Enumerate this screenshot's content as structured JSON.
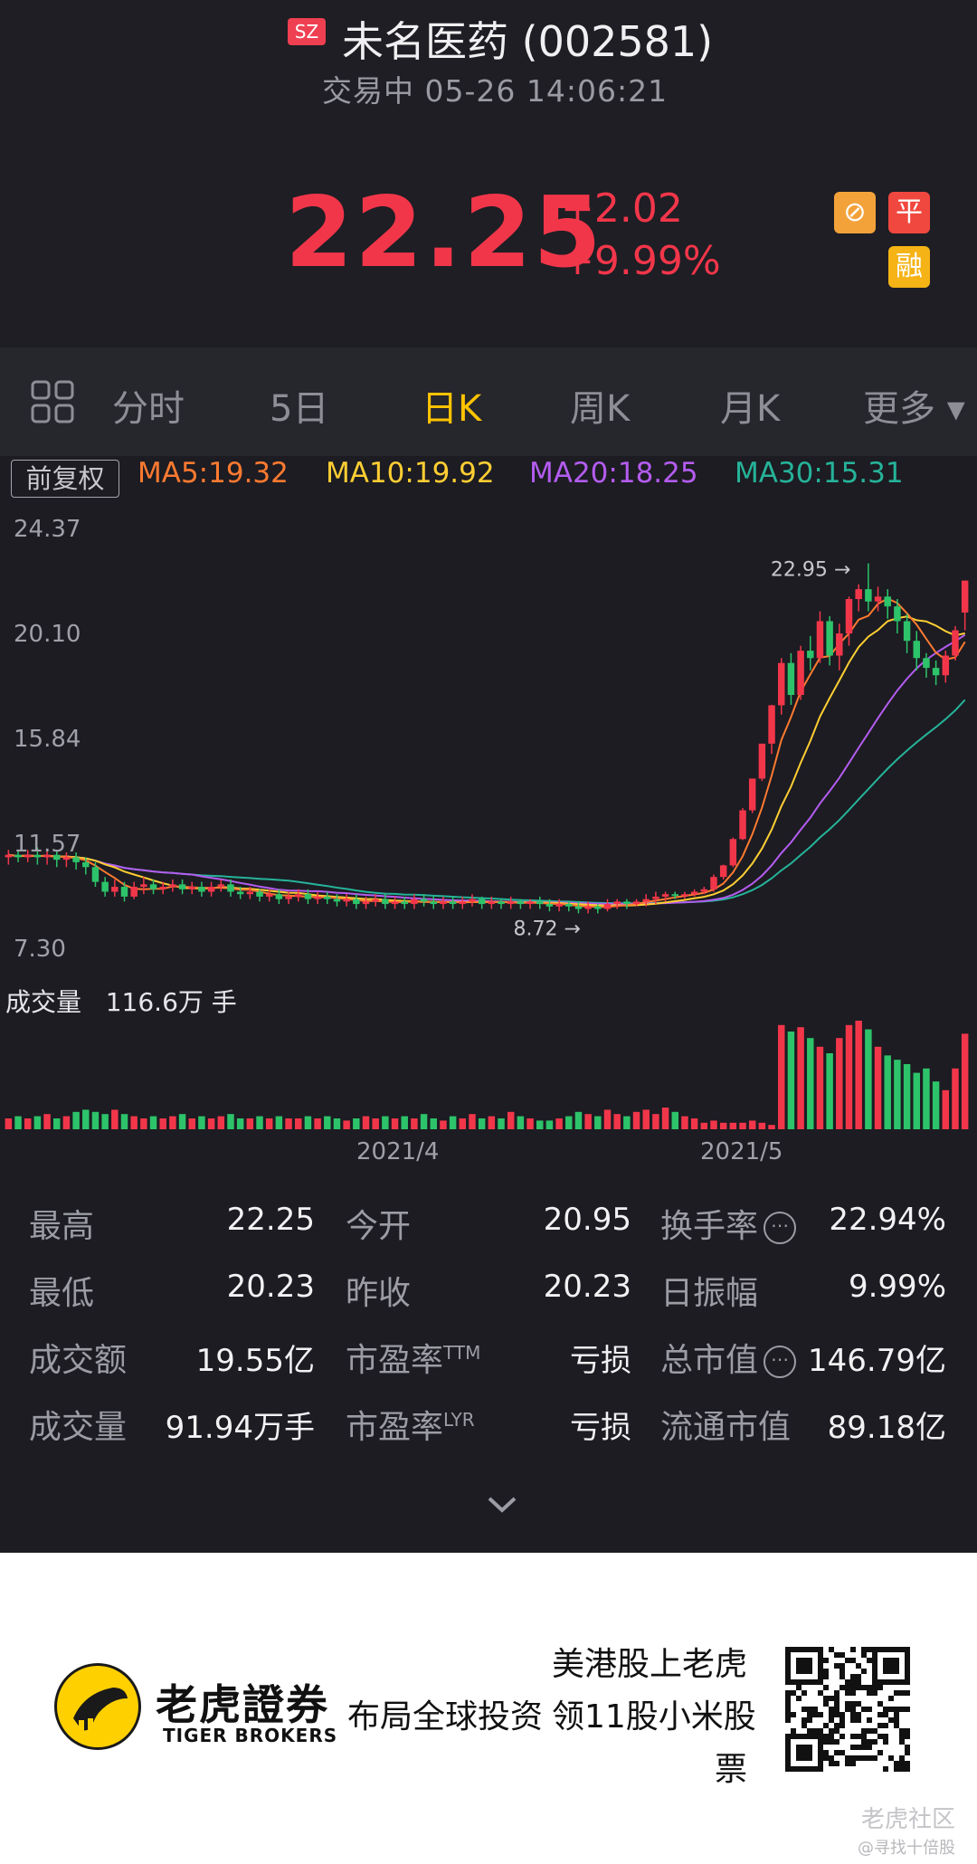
{
  "header": {
    "market_badge": "SZ",
    "title": "未名医药 (002581)",
    "status": "交易中 05-26 14:06:21",
    "price": "22.25",
    "change": "+2.02",
    "change_pct": "+9.99%",
    "badges": [
      {
        "text": "⊘",
        "color": "#f3a23a"
      },
      {
        "text": "平",
        "color": "#f0473f"
      },
      {
        "text": "融",
        "color": "#f5b316"
      }
    ]
  },
  "tabs": {
    "grid_icon": "grid-icon",
    "items": [
      "分时",
      "5日",
      "日K",
      "周K",
      "月K",
      "更多 ▾"
    ],
    "active": "日K"
  },
  "chart_header": {
    "adjust": "前复权",
    "ma5": "MA5:19.32",
    "ma10": "MA10:19.92",
    "ma20": "MA20:18.25",
    "ma30": "MA30:15.31"
  },
  "colors": {
    "up": "#f2364a",
    "down": "#2dc36a",
    "ma5": "#ff7a30",
    "ma10": "#ffce33",
    "ma20": "#b45cf0",
    "ma30": "#26b39a",
    "accent": "#ffc400"
  },
  "chart_data": {
    "type": "candlestick",
    "y_ticks": [
      "24.37",
      "20.10",
      "15.84",
      "11.57",
      "7.30"
    ],
    "ylim": [
      7.3,
      24.37
    ],
    "high_label": "22.95",
    "low_label": "8.72",
    "x_ticks": [
      "2021/4",
      "2021/5"
    ],
    "volume_label": "成交量",
    "volume_value": "116.6万 手",
    "candles": [
      [
        11.0,
        11.1,
        10.7,
        11.3
      ],
      [
        11.1,
        11.0,
        10.8,
        11.3
      ],
      [
        11.0,
        11.1,
        10.8,
        11.3
      ],
      [
        11.1,
        11.0,
        10.7,
        11.4
      ],
      [
        11.0,
        11.1,
        10.7,
        11.3
      ],
      [
        11.1,
        10.9,
        10.6,
        11.3
      ],
      [
        10.9,
        11.0,
        10.6,
        11.2
      ],
      [
        11.0,
        10.8,
        10.5,
        11.2
      ],
      [
        10.8,
        10.6,
        10.3,
        11.0
      ],
      [
        10.6,
        10.0,
        9.8,
        10.8
      ],
      [
        10.0,
        9.6,
        9.4,
        10.2
      ],
      [
        9.6,
        9.8,
        9.4,
        10.1
      ],
      [
        9.8,
        9.4,
        9.2,
        10.0
      ],
      [
        9.4,
        9.8,
        9.3,
        10.0
      ],
      [
        9.8,
        9.9,
        9.5,
        10.2
      ],
      [
        9.9,
        9.7,
        9.5,
        10.1
      ],
      [
        9.7,
        9.8,
        9.5,
        10.0
      ],
      [
        9.8,
        9.9,
        9.6,
        10.1
      ],
      [
        9.9,
        9.7,
        9.5,
        10.1
      ],
      [
        9.7,
        9.8,
        9.5,
        10.0
      ],
      [
        9.8,
        9.6,
        9.4,
        10.0
      ],
      [
        9.6,
        9.8,
        9.4,
        10.0
      ],
      [
        9.8,
        9.9,
        9.6,
        10.1
      ],
      [
        9.9,
        9.6,
        9.4,
        10.1
      ],
      [
        9.6,
        9.5,
        9.3,
        9.8
      ],
      [
        9.5,
        9.6,
        9.3,
        9.8
      ],
      [
        9.6,
        9.4,
        9.2,
        9.7
      ],
      [
        9.4,
        9.5,
        9.2,
        9.7
      ],
      [
        9.5,
        9.3,
        9.1,
        9.7
      ],
      [
        9.3,
        9.4,
        9.1,
        9.6
      ],
      [
        9.4,
        9.5,
        9.2,
        9.7
      ],
      [
        9.5,
        9.3,
        9.1,
        9.7
      ],
      [
        9.3,
        9.4,
        9.1,
        9.6
      ],
      [
        9.4,
        9.3,
        9.1,
        9.6
      ],
      [
        9.3,
        9.2,
        9.0,
        9.5
      ],
      [
        9.2,
        9.3,
        9.0,
        9.5
      ],
      [
        9.3,
        9.1,
        8.9,
        9.5
      ],
      [
        9.1,
        9.2,
        8.9,
        9.4
      ],
      [
        9.2,
        9.3,
        9.0,
        9.5
      ],
      [
        9.3,
        9.1,
        8.9,
        9.5
      ],
      [
        9.1,
        9.2,
        8.9,
        9.4
      ],
      [
        9.2,
        9.1,
        8.9,
        9.4
      ],
      [
        9.1,
        9.3,
        8.9,
        9.5
      ],
      [
        9.3,
        9.2,
        9.0,
        9.5
      ],
      [
        9.2,
        9.1,
        8.9,
        9.4
      ],
      [
        9.1,
        9.2,
        8.9,
        9.4
      ],
      [
        9.2,
        9.1,
        8.9,
        9.4
      ],
      [
        9.1,
        9.2,
        8.9,
        9.4
      ],
      [
        9.2,
        9.3,
        9.0,
        9.5
      ],
      [
        9.3,
        9.1,
        8.9,
        9.4
      ],
      [
        9.1,
        9.2,
        8.9,
        9.4
      ],
      [
        9.2,
        9.1,
        8.9,
        9.3
      ],
      [
        9.1,
        9.2,
        8.9,
        9.4
      ],
      [
        9.2,
        9.1,
        8.9,
        9.3
      ],
      [
        9.1,
        9.2,
        8.9,
        9.3
      ],
      [
        9.2,
        9.1,
        8.9,
        9.4
      ],
      [
        9.1,
        9.0,
        8.8,
        9.3
      ],
      [
        9.0,
        9.1,
        8.8,
        9.3
      ],
      [
        9.1,
        9.0,
        8.8,
        9.2
      ],
      [
        9.0,
        8.9,
        8.72,
        9.2
      ],
      [
        8.9,
        9.0,
        8.72,
        9.2
      ],
      [
        9.0,
        8.9,
        8.72,
        9.1
      ],
      [
        8.9,
        9.1,
        8.8,
        9.3
      ],
      [
        9.1,
        9.2,
        8.9,
        9.3
      ],
      [
        9.2,
        9.1,
        8.9,
        9.3
      ],
      [
        9.1,
        9.2,
        9.0,
        9.3
      ],
      [
        9.2,
        9.3,
        9.0,
        9.5
      ],
      [
        9.3,
        9.4,
        9.1,
        9.6
      ],
      [
        9.4,
        9.5,
        9.2,
        9.6
      ],
      [
        9.5,
        9.45,
        9.3,
        9.6
      ],
      [
        9.45,
        9.5,
        9.3,
        9.6
      ],
      [
        9.5,
        9.6,
        9.4,
        9.7
      ],
      [
        9.6,
        9.7,
        9.5,
        9.8
      ],
      [
        9.7,
        10.2,
        9.6,
        10.3
      ],
      [
        10.2,
        10.67,
        10.1,
        10.7
      ],
      [
        10.67,
        11.74,
        10.6,
        11.8
      ],
      [
        11.74,
        12.91,
        11.7,
        13.0
      ],
      [
        12.91,
        14.2,
        12.8,
        14.2
      ],
      [
        14.2,
        15.62,
        14.1,
        15.6
      ],
      [
        15.62,
        17.18,
        15.2,
        17.2
      ],
      [
        17.18,
        18.9,
        16.8,
        19.1
      ],
      [
        18.9,
        17.6,
        17.2,
        19.3
      ],
      [
        17.6,
        19.4,
        17.4,
        19.6
      ],
      [
        19.4,
        19.1,
        18.6,
        20.0
      ],
      [
        19.1,
        20.6,
        18.9,
        21.0
      ],
      [
        20.6,
        19.2,
        18.8,
        20.8
      ],
      [
        19.2,
        20.1,
        18.6,
        20.5
      ],
      [
        20.1,
        21.5,
        19.6,
        21.6
      ],
      [
        21.5,
        21.9,
        21.0,
        22.1
      ],
      [
        21.9,
        21.4,
        21.0,
        22.95
      ],
      [
        21.4,
        21.6,
        21.0,
        22.0
      ],
      [
        21.6,
        21.2,
        20.7,
        21.9
      ],
      [
        21.2,
        20.6,
        20.1,
        21.5
      ],
      [
        20.6,
        19.8,
        19.3,
        20.9
      ],
      [
        19.8,
        19.1,
        18.6,
        20.2
      ],
      [
        19.1,
        18.7,
        18.3,
        19.3
      ],
      [
        18.7,
        18.4,
        18.0,
        19.0
      ],
      [
        18.4,
        19.2,
        18.1,
        19.4
      ],
      [
        19.2,
        20.23,
        19.0,
        20.4
      ],
      [
        20.95,
        22.25,
        20.23,
        22.25
      ]
    ],
    "volumes": [
      5,
      6,
      5,
      6,
      7,
      5,
      6,
      8,
      9,
      8,
      7,
      9,
      7,
      6,
      5,
      6,
      5,
      6,
      7,
      5,
      6,
      5,
      6,
      7,
      5,
      5,
      6,
      5,
      6,
      5,
      5,
      6,
      5,
      6,
      5,
      4,
      5,
      6,
      5,
      6,
      5,
      6,
      5,
      7,
      5,
      4,
      6,
      5,
      7,
      5,
      6,
      5,
      8,
      6,
      5,
      4,
      4,
      5,
      6,
      8,
      7,
      6,
      9,
      7,
      6,
      8,
      9,
      7,
      10,
      8,
      6,
      5,
      3,
      4,
      3,
      3,
      3,
      4,
      3,
      2,
      48,
      45,
      47,
      42,
      38,
      35,
      42,
      48,
      50,
      46,
      38,
      34,
      32,
      30,
      26,
      28,
      22,
      18,
      28,
      44
    ]
  },
  "stats": [
    [
      {
        "label": "最高",
        "value": "22.25"
      },
      {
        "label": "今开",
        "value": "20.95"
      },
      {
        "label": "换手率",
        "value": "22.94%",
        "info": true
      }
    ],
    [
      {
        "label": "最低",
        "value": "20.23"
      },
      {
        "label": "昨收",
        "value": "20.23"
      },
      {
        "label": "日振幅",
        "value": "9.99%"
      }
    ],
    [
      {
        "label": "成交额",
        "value": "19.55亿"
      },
      {
        "label": "市盈率",
        "sup": "TTM",
        "value": "亏损"
      },
      {
        "label": "总市值",
        "value": "146.79亿",
        "info": true
      }
    ],
    [
      {
        "label": "成交量",
        "value": "91.94万手"
      },
      {
        "label": "市盈率",
        "sup": "LYR",
        "value": "亏损"
      },
      {
        "label": "流通市值",
        "value": "89.18亿"
      }
    ]
  ],
  "expand_icon": "chevron-down-icon",
  "footer": {
    "brand_cn": "老虎證券",
    "brand_en": "TIGER BROKERS",
    "slogan_left": "布局全球投资",
    "slogan_right_1": "美港股上老虎",
    "slogan_right_2": "领11股小米股",
    "slogan_right_3": "票",
    "watermark_1": "老虎社区",
    "watermark_2": "@寻找十倍股"
  }
}
